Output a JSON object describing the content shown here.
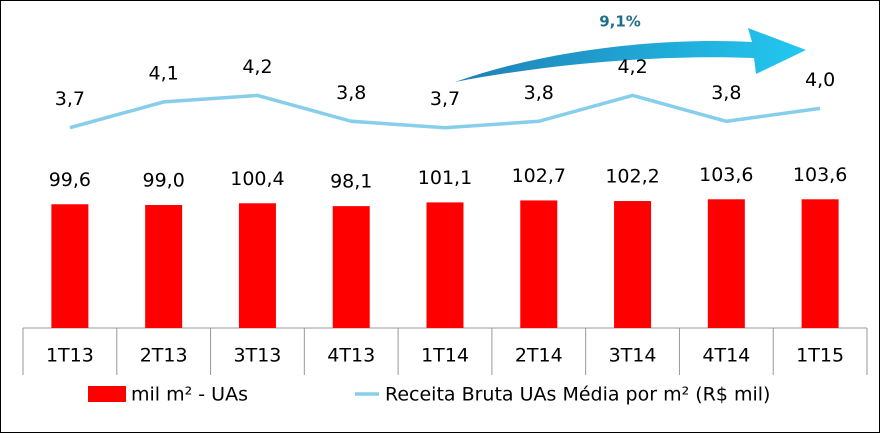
{
  "chart_data": {
    "type": "bar-line",
    "categories": [
      "1T13",
      "2T13",
      "3T13",
      "4T13",
      "1T14",
      "2T14",
      "3T14",
      "4T14",
      "1T15"
    ],
    "series": [
      {
        "name": "mil m² - UAs",
        "color": "#ff0000",
        "type": "bar",
        "values": [
          99.6,
          99.0,
          100.4,
          98.1,
          101.1,
          102.7,
          102.2,
          103.6,
          103.6
        ],
        "value_labels": [
          "99,6",
          "99,0",
          "100,4",
          "98,1",
          "101,1",
          "102,7",
          "102,2",
          "103,6",
          "103,6"
        ]
      },
      {
        "name": "Receita Bruta UAs Média por m² (R$ mil)",
        "color": "#87ceeb",
        "type": "line",
        "axis": "y2",
        "values": [
          3.7,
          4.1,
          4.2,
          3.8,
          3.7,
          3.8,
          4.2,
          3.8,
          4.0
        ],
        "value_labels": [
          "3,7",
          "4,1",
          "4,2",
          "3,8",
          "3,7",
          "3,8",
          "4,2",
          "3,8",
          "4,0"
        ]
      }
    ],
    "annotation": "9,1%",
    "ylim": [
      0,
      260
    ],
    "y2lim": [
      0.6,
      5.6
    ]
  }
}
